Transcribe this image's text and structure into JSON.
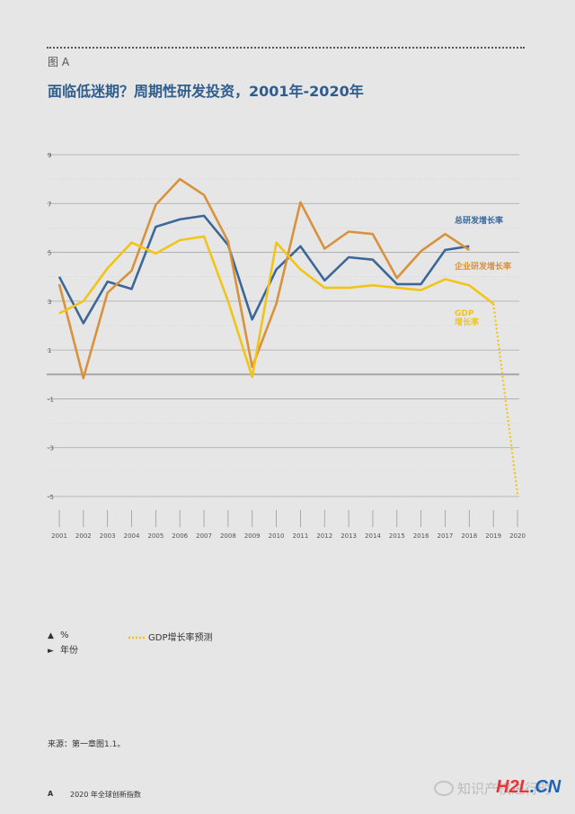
{
  "figure_label": "图 A",
  "chart_data": {
    "type": "line",
    "title": "面临低迷期？周期性研发投资，2001年-2020年",
    "x": [
      "2001",
      "2002",
      "2003",
      "2004",
      "2005",
      "2006",
      "2007",
      "2008",
      "2009",
      "2010",
      "2011",
      "2012",
      "2013",
      "2014",
      "2015",
      "2016",
      "2017",
      "2018",
      "2019",
      "2020"
    ],
    "y_ticks": [
      "9",
      "7",
      "5",
      "3",
      "1",
      "-1",
      "-3",
      "-5"
    ],
    "ylim": [
      -5,
      9
    ],
    "grid": true,
    "zero_line": true,
    "series": [
      {
        "name": "总研发增长率",
        "color": "#3c6796",
        "style": "solid",
        "values": [
          4.0,
          2.1,
          3.8,
          3.5,
          6.05,
          6.35,
          6.5,
          5.3,
          2.25,
          4.3,
          5.25,
          3.85,
          4.8,
          4.7,
          3.7,
          3.7,
          5.1,
          5.25,
          null,
          null
        ]
      },
      {
        "name": "企业研发增长率",
        "color": "#d8923c",
        "style": "solid",
        "values": [
          3.7,
          -0.15,
          3.35,
          4.25,
          6.95,
          8.0,
          7.35,
          5.45,
          0.3,
          2.9,
          7.05,
          5.15,
          5.85,
          5.75,
          3.95,
          5.05,
          5.75,
          5.1,
          null,
          null
        ]
      },
      {
        "name": "GDP增长率",
        "color": "#f2c418",
        "style": "solid",
        "values": [
          2.5,
          3.0,
          4.35,
          5.4,
          4.95,
          5.5,
          5.65,
          3.0,
          -0.1,
          5.4,
          4.3,
          3.55,
          3.55,
          3.65,
          3.55,
          3.45,
          3.9,
          3.65,
          2.9,
          null
        ]
      },
      {
        "name": "GDP增长率预测",
        "color": "#f2c418",
        "style": "dotted",
        "values": [
          null,
          null,
          null,
          null,
          null,
          null,
          null,
          null,
          null,
          null,
          null,
          null,
          null,
          null,
          null,
          null,
          null,
          null,
          2.9,
          -4.9
        ]
      }
    ],
    "series_labels": [
      {
        "text": "总研发增长率",
        "color": "#3c6796"
      },
      {
        "text": "企业研发增长率",
        "color": "#d8923c"
      },
      {
        "text": "GDP",
        "color": "#f2c418"
      },
      {
        "text": "增长率",
        "color": "#f2c418"
      }
    ]
  },
  "legend": {
    "y_axis": "%",
    "x_axis": "年份",
    "forecast": "GDP增长率预测",
    "y_marker": "▲",
    "x_marker": "►"
  },
  "source": "来源：第一章图1.1。",
  "footer": {
    "page": "A",
    "title": "2020 年全球创新指数"
  },
  "watermark": {
    "text": "知识产权进行时",
    "site_a": "H2L",
    "site_b": ".CN"
  }
}
